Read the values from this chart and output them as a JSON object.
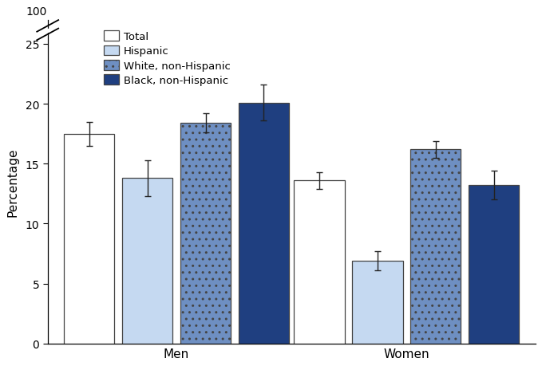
{
  "groups": [
    "Men",
    "Women"
  ],
  "categories": [
    "Total",
    "Hispanic",
    "White, non-Hispanic",
    "Black, non-Hispanic"
  ],
  "values": {
    "Men": [
      17.5,
      13.8,
      18.4,
      20.1
    ],
    "Women": [
      13.6,
      6.9,
      16.2,
      13.2
    ]
  },
  "errors": {
    "Men": [
      1.0,
      1.5,
      0.8,
      1.5
    ],
    "Women": [
      0.7,
      0.8,
      0.7,
      1.2
    ]
  },
  "bar_colors": [
    "#ffffff",
    "#c5d9f1",
    "#6e8fc2",
    "#1f3f80"
  ],
  "bar_edge_colors": [
    "#444444",
    "#444444",
    "#444444",
    "#444444"
  ],
  "ylabel": "Percentage",
  "yticks": [
    0,
    5,
    10,
    15,
    20,
    25
  ],
  "ytick_top_label": "100",
  "ylim": [
    0,
    27
  ],
  "bar_width": 0.11,
  "background_color": "#ffffff",
  "legend_labels": [
    "Total",
    "Hispanic",
    "White, non-Hispanic",
    "Black, non-Hispanic"
  ],
  "error_color": "#222222",
  "error_capsize": 3,
  "group_centers": [
    0.28,
    0.78
  ],
  "xlim": [
    0.0,
    1.06
  ]
}
